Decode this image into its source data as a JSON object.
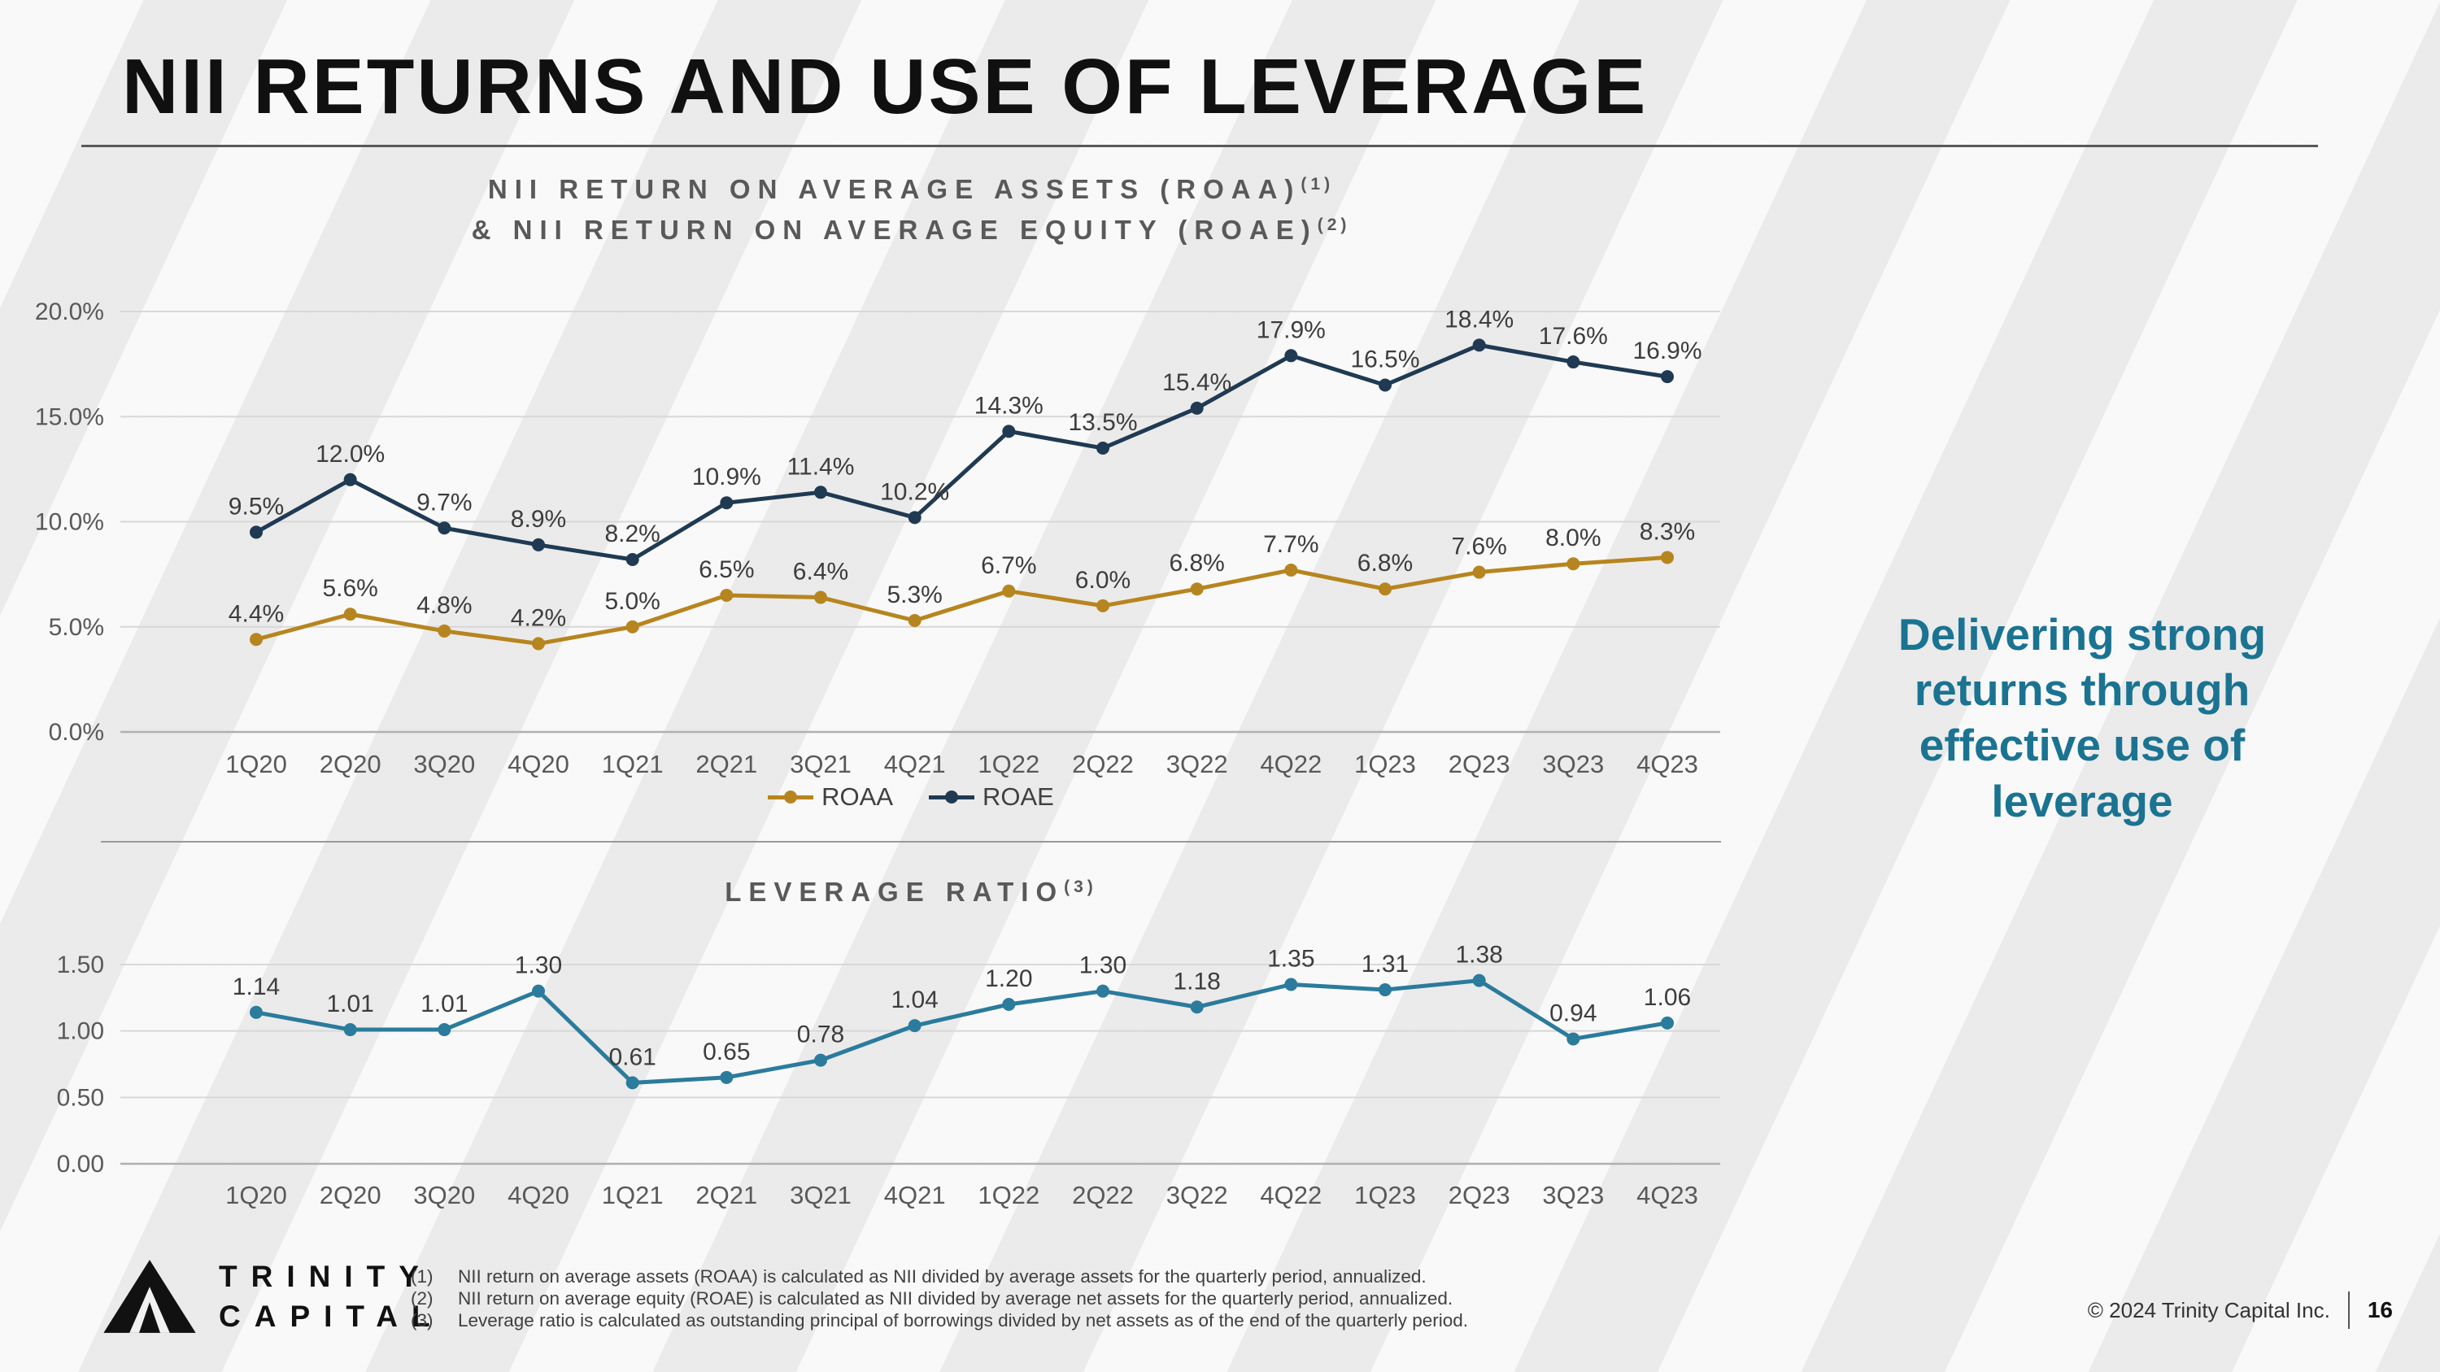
{
  "slide": {
    "title": "NII RETURNS AND USE OF LEVERAGE",
    "message": "Delivering strong returns through effective use of leverage",
    "copyright": "© 2024 Trinity Capital Inc.",
    "page_number": "16"
  },
  "logo": {
    "line1": "TRINITY",
    "line2": "CAPITAL"
  },
  "colors": {
    "roaa": "#B7851F",
    "roae": "#1F3A52",
    "leverage": "#2B7B9C",
    "message_accent": "#1B7392"
  },
  "chart_data": [
    {
      "type": "line",
      "title": "NII RETURN ON AVERAGE ASSETS (ROAA)",
      "title_sup": "(1)",
      "title2": "& NII RETURN ON AVERAGE EQUITY (ROAE)",
      "title2_sup": "(2)",
      "categories": [
        "1Q20",
        "2Q20",
        "3Q20",
        "4Q20",
        "1Q21",
        "2Q21",
        "3Q21",
        "4Q21",
        "1Q22",
        "2Q22",
        "3Q22",
        "4Q22",
        "1Q23",
        "2Q23",
        "3Q23",
        "4Q23"
      ],
      "series": [
        {
          "name": "ROAA",
          "color": "#B7851F",
          "values": [
            4.4,
            5.6,
            4.8,
            4.2,
            5.0,
            6.5,
            6.4,
            5.3,
            6.7,
            6.0,
            6.8,
            7.7,
            6.8,
            7.6,
            8.0,
            8.3
          ],
          "labels": [
            "4.4%",
            "5.6%",
            "4.8%",
            "4.2%",
            "5.0%",
            "6.5%",
            "6.4%",
            "5.3%",
            "6.7%",
            "6.0%",
            "6.8%",
            "7.7%",
            "6.8%",
            "7.6%",
            "8.0%",
            "8.3%"
          ]
        },
        {
          "name": "ROAE",
          "color": "#1F3A52",
          "values": [
            9.5,
            12.0,
            9.7,
            8.9,
            8.2,
            10.9,
            11.4,
            10.2,
            14.3,
            13.5,
            15.4,
            17.9,
            16.5,
            18.4,
            17.6,
            16.9
          ],
          "labels": [
            "9.5%",
            "12.0%",
            "9.7%",
            "8.9%",
            "8.2%",
            "10.9%",
            "11.4%",
            "10.2%",
            "14.3%",
            "13.5%",
            "15.4%",
            "17.9%",
            "16.5%",
            "18.4%",
            "17.6%",
            "16.9%"
          ]
        }
      ],
      "ylim": [
        0,
        20
      ],
      "yticks": [
        {
          "v": 0,
          "label": "0.0%"
        },
        {
          "v": 5,
          "label": "5.0%"
        },
        {
          "v": 10,
          "label": "10.0%"
        },
        {
          "v": 15,
          "label": "15.0%"
        },
        {
          "v": 20,
          "label": "20.0%"
        }
      ],
      "grid": true,
      "legend_position": "bottom"
    },
    {
      "type": "line",
      "title": "LEVERAGE RATIO",
      "title_sup": "(3)",
      "categories": [
        "1Q20",
        "2Q20",
        "3Q20",
        "4Q20",
        "1Q21",
        "2Q21",
        "3Q21",
        "4Q21",
        "1Q22",
        "2Q22",
        "3Q22",
        "4Q22",
        "1Q23",
        "2Q23",
        "3Q23",
        "4Q23"
      ],
      "series": [
        {
          "name": "Leverage Ratio",
          "color": "#2B7B9C",
          "values": [
            1.14,
            1.01,
            1.01,
            1.3,
            0.61,
            0.65,
            0.78,
            1.04,
            1.2,
            1.3,
            1.18,
            1.35,
            1.31,
            1.38,
            0.94,
            1.06
          ],
          "labels": [
            "1.14",
            "1.01",
            "1.01",
            "1.30",
            "0.61",
            "0.65",
            "0.78",
            "1.04",
            "1.20",
            "1.30",
            "1.18",
            "1.35",
            "1.31",
            "1.38",
            "0.94",
            "1.06"
          ]
        }
      ],
      "ylim": [
        0,
        1.5
      ],
      "yticks": [
        {
          "v": 0,
          "label": "0.00"
        },
        {
          "v": 0.5,
          "label": "0.50"
        },
        {
          "v": 1.0,
          "label": "1.00"
        },
        {
          "v": 1.5,
          "label": "1.50"
        }
      ],
      "grid": true,
      "legend_position": "none"
    }
  ],
  "footnotes": [
    {
      "num": "(1)",
      "text": "NII return on average assets (ROAA) is calculated as NII divided by average assets for the quarterly period, annualized."
    },
    {
      "num": "(2)",
      "text": "NII return on average equity (ROAE) is calculated as NII divided by average net assets for the quarterly period, annualized."
    },
    {
      "num": "(3)",
      "text": "Leverage ratio is calculated as outstanding principal of borrowings divided by net assets as of the end of the quarterly period."
    }
  ]
}
